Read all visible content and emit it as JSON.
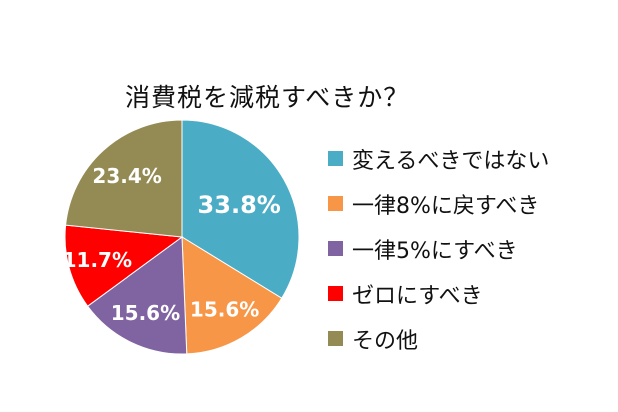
{
  "chart_data": {
    "type": "pie",
    "title": "消費税を減税すべきか？",
    "legend_position": "right",
    "slices": [
      {
        "label": "変えるべきではない",
        "value": 33.8,
        "value_label": "33.8%",
        "color": "#4BACC6"
      },
      {
        "label": "一律8%に戻すべき",
        "value": 15.6,
        "value_label": "15.6%",
        "color": "#F79646"
      },
      {
        "label": "一律5%にすべき",
        "value": 15.6,
        "value_label": "15.6%",
        "color": "#8064A2"
      },
      {
        "label": "ゼロにすべき",
        "value": 11.7,
        "value_label": "11.7%",
        "color": "#FF0000"
      },
      {
        "label": "その他",
        "value": 23.4,
        "value_label": "23.4%",
        "color": "#948A54"
      }
    ]
  }
}
